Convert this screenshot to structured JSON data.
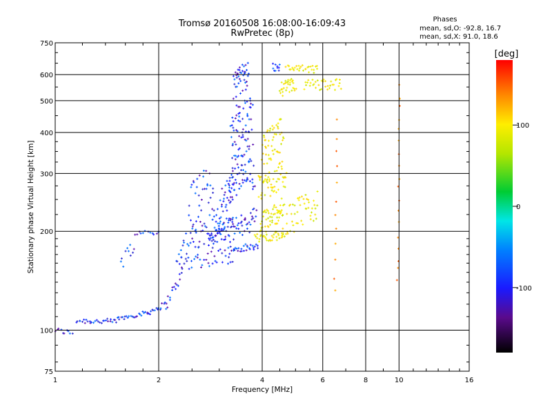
{
  "chart_data": {
    "type": "scatter",
    "title": "Tromsø 20160508 16:08:00-16:09:43",
    "subtitle": "RwPretec (8p)",
    "xlabel": "Frequency [MHz]",
    "ylabel": "Stationary phase Virtual Height [km]",
    "x_scale": "log",
    "y_scale": "log",
    "xlim": [
      1,
      16
    ],
    "ylim": [
      75,
      750
    ],
    "x_ticks": [
      {
        "value": 1,
        "label": "1"
      },
      {
        "value": 2,
        "label": "2"
      },
      {
        "value": 4,
        "label": "4"
      },
      {
        "value": 6,
        "label": "6"
      },
      {
        "value": 8,
        "label": "8"
      },
      {
        "value": 10,
        "label": "10"
      },
      {
        "value": 16,
        "label": "16"
      }
    ],
    "y_ticks": [
      {
        "value": 75,
        "label": "75"
      },
      {
        "value": 100,
        "label": "100"
      },
      {
        "value": 200,
        "label": "200"
      },
      {
        "value": 300,
        "label": "300"
      },
      {
        "value": 400,
        "label": "400"
      },
      {
        "value": 500,
        "label": "500"
      },
      {
        "value": 600,
        "label": "600"
      },
      {
        "value": 750,
        "label": "750"
      }
    ],
    "grid": true,
    "phases_header": "Phases",
    "stats": [
      {
        "label": "mean, sd,O:",
        "value": "-92.8, 16.7"
      },
      {
        "label": "mean, sd,X:",
        "value": " 91.0, 18.6"
      }
    ],
    "colorbar": {
      "label": "[deg]",
      "range": [
        -180,
        180
      ],
      "ticks": [
        {
          "value": 100,
          "label": "100"
        },
        {
          "value": 0,
          "label": "0"
        },
        {
          "value": -100,
          "label": "-100"
        }
      ]
    },
    "series": [
      {
        "phase_deg": -95,
        "segments": [
          {
            "f0": 1.0,
            "f1": 1.12,
            "h0": 100,
            "h1": 98,
            "n": 10,
            "spread": 0.02
          },
          {
            "f0": 1.15,
            "f1": 1.5,
            "h0": 107,
            "h1": 106,
            "n": 28,
            "spread": 0.02
          },
          {
            "f0": 1.5,
            "f1": 1.85,
            "h0": 108,
            "h1": 113,
            "n": 24,
            "spread": 0.015
          },
          {
            "f0": 1.85,
            "f1": 2.1,
            "h0": 113,
            "h1": 120,
            "n": 16,
            "spread": 0.02
          },
          {
            "f0": 2.1,
            "f1": 2.35,
            "h0": 120,
            "h1": 150,
            "n": 16,
            "spread": 0.04
          },
          {
            "f0": 2.25,
            "f1": 3.3,
            "h0": 160,
            "h1": 170,
            "n": 40,
            "spread": 0.06
          },
          {
            "f0": 2.3,
            "f1": 3.0,
            "h0": 180,
            "h1": 200,
            "n": 40,
            "spread": 0.1
          },
          {
            "f0": 2.45,
            "f1": 2.9,
            "h0": 240,
            "h1": 260,
            "n": 40,
            "spread": 0.2
          },
          {
            "f0": 1.7,
            "f1": 2.0,
            "h0": 198,
            "h1": 198,
            "n": 12,
            "spread": 0.015
          },
          {
            "f0": 1.55,
            "f1": 1.7,
            "h0": 160,
            "h1": 185,
            "n": 10,
            "spread": 0.06
          },
          {
            "f0": 2.8,
            "f1": 3.2,
            "h0": 190,
            "h1": 200,
            "n": 30,
            "spread": 0.05
          },
          {
            "f0": 3.2,
            "f1": 3.9,
            "h0": 175,
            "h1": 180,
            "n": 30,
            "spread": 0.03
          },
          {
            "f0": 3.2,
            "f1": 3.85,
            "h0": 200,
            "h1": 220,
            "n": 40,
            "spread": 0.08
          },
          {
            "f0": 3.2,
            "f1": 3.8,
            "h0": 280,
            "h1": 300,
            "n": 50,
            "spread": 0.12
          },
          {
            "f0": 3.25,
            "f1": 3.75,
            "h0": 400,
            "h1": 420,
            "n": 70,
            "spread": 0.2
          },
          {
            "f0": 3.3,
            "f1": 3.65,
            "h0": 560,
            "h1": 600,
            "n": 40,
            "spread": 0.1
          },
          {
            "f0": 2.9,
            "f1": 3.3,
            "h0": 210,
            "h1": 230,
            "n": 30,
            "spread": 0.1
          },
          {
            "f0": 3.0,
            "f1": 3.3,
            "h0": 240,
            "h1": 280,
            "n": 24,
            "spread": 0.1
          },
          {
            "f0": 4.3,
            "f1": 4.5,
            "h0": 635,
            "h1": 635,
            "n": 10,
            "spread": 0.03
          }
        ]
      },
      {
        "phase_deg": 95,
        "segments": [
          {
            "f0": 3.8,
            "f1": 4.6,
            "h0": 190,
            "h1": 195,
            "n": 30,
            "spread": 0.03
          },
          {
            "f0": 3.95,
            "f1": 4.6,
            "h0": 210,
            "h1": 235,
            "n": 50,
            "spread": 0.08
          },
          {
            "f0": 3.9,
            "f1": 4.7,
            "h0": 270,
            "h1": 300,
            "n": 55,
            "spread": 0.1
          },
          {
            "f0": 4.0,
            "f1": 4.6,
            "h0": 350,
            "h1": 400,
            "n": 50,
            "spread": 0.12
          },
          {
            "f0": 4.4,
            "f1": 5.8,
            "h0": 210,
            "h1": 240,
            "n": 60,
            "spread": 0.12
          },
          {
            "f0": 4.5,
            "f1": 5.0,
            "h0": 540,
            "h1": 560,
            "n": 30,
            "spread": 0.05
          },
          {
            "f0": 4.7,
            "f1": 5.8,
            "h0": 625,
            "h1": 620,
            "n": 30,
            "spread": 0.03
          },
          {
            "f0": 5.3,
            "f1": 6.8,
            "h0": 560,
            "h1": 560,
            "n": 35,
            "spread": 0.04
          }
        ]
      },
      {
        "phase_deg": 150,
        "segments": [
          {
            "f0": 6.5,
            "f1": 6.6,
            "h0": 130,
            "h1": 430,
            "n": 12,
            "spread": 0.02
          },
          {
            "f0": 9.9,
            "f1": 10.05,
            "h0": 140,
            "h1": 560,
            "n": 18,
            "spread": 0.02
          }
        ]
      }
    ]
  }
}
